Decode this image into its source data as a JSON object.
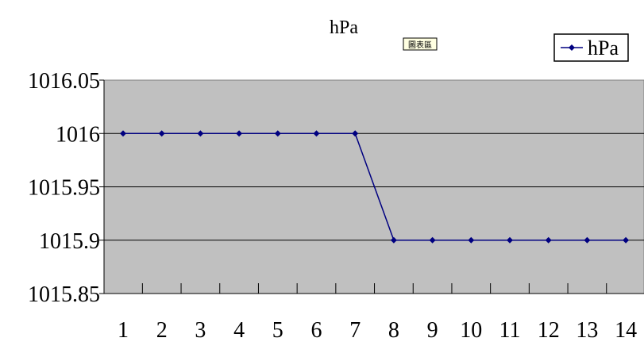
{
  "chart_data": {
    "type": "line",
    "title": "hPa",
    "badge": "圖表區",
    "xlabel": "",
    "ylabel": "",
    "categories": [
      "1",
      "2",
      "3",
      "4",
      "5",
      "6",
      "7",
      "8",
      "9",
      "10",
      "11",
      "12",
      "13",
      "14"
    ],
    "series": [
      {
        "name": "hPa",
        "values": [
          1016,
          1016,
          1016,
          1016,
          1016,
          1016,
          1016,
          1015.9,
          1015.9,
          1015.9,
          1015.9,
          1015.9,
          1015.9,
          1015.9
        ]
      }
    ],
    "yticks": [
      "1015.85",
      "1015.9",
      "1015.95",
      "1016",
      "1016.05"
    ],
    "ylim": [
      1015.85,
      1016.05
    ],
    "grid": true,
    "legend_position": "top-right",
    "colors": {
      "plot_background": "#c0c0c0",
      "series_line": "#000080",
      "gridline": "#000000"
    }
  }
}
